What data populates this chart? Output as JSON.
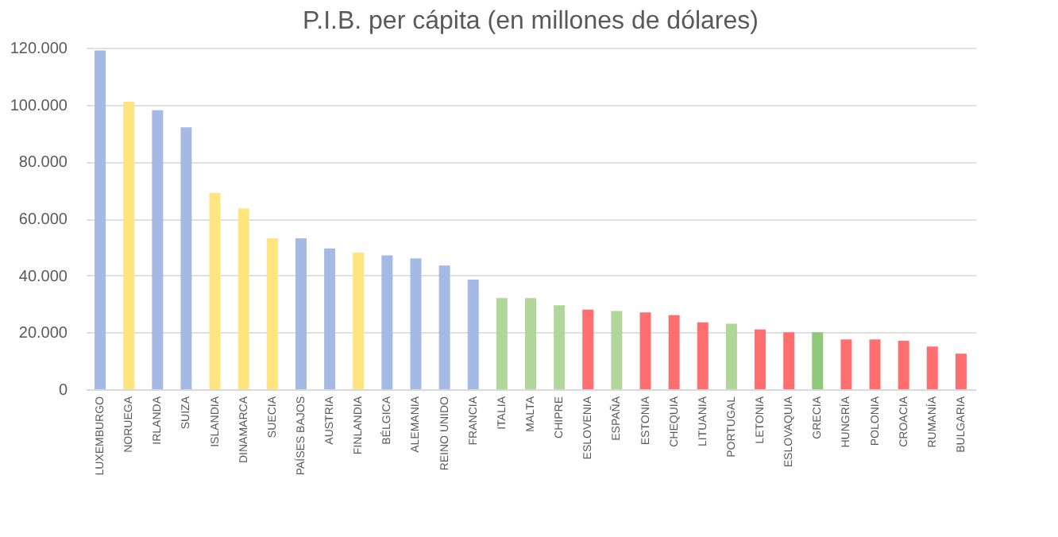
{
  "chart_data": {
    "type": "bar",
    "title": "P.I.B. per cápita (en millones de dólares)",
    "categories": [
      "LUXEMBURGO",
      "NORUEGA",
      "IRLANDA",
      "SUIZA",
      "ISLANDIA",
      "DINAMARCA",
      "SUECIA",
      "PAÍSES BAJOS",
      "AUSTRIA",
      "FINLANDIA",
      "BÉLGICA",
      "ALEMANIA",
      "REINO UNIDO",
      "FRANCIA",
      "ITALIA",
      "MALTA",
      "CHIPRE",
      "ESLOVENIA",
      "ESPAÑA",
      "ESTONIA",
      "CHEQUIA",
      "LITUANIA",
      "PORTUGAL",
      "LETONIA",
      "ESLOVAQUIA",
      "GRECIA",
      "HUNGRÍA",
      "POLONIA",
      "CROACIA",
      "RUMANÍA",
      "BULGARIA"
    ],
    "values": [
      119000,
      101000,
      98000,
      92000,
      69000,
      63500,
      53000,
      53000,
      49500,
      48000,
      47000,
      46000,
      43500,
      38500,
      32000,
      32000,
      29500,
      28000,
      27500,
      27000,
      26000,
      23500,
      23000,
      21000,
      20000,
      20000,
      17500,
      17500,
      17000,
      15000,
      12500
    ],
    "colors": [
      "#a4b9e3",
      "#ffe47f",
      "#a4b9e3",
      "#a4b9e3",
      "#ffe47f",
      "#ffe47f",
      "#ffe47f",
      "#a4b9e3",
      "#a4b9e3",
      "#ffe47f",
      "#a4b9e3",
      "#a4b9e3",
      "#a4b9e3",
      "#a4b9e3",
      "#b0d69a",
      "#b0d69a",
      "#b0d69a",
      "#ff6f70",
      "#b0d69a",
      "#ff6f70",
      "#ff6f70",
      "#ff6f70",
      "#b0d69a",
      "#ff6f70",
      "#ff6f70",
      "#8fc97a",
      "#ff6f70",
      "#ff6f70",
      "#ff6f70",
      "#ff6f70",
      "#ff6f70"
    ],
    "ylim": [
      0,
      120000
    ],
    "yticks": [
      {
        "value": 0,
        "label": "0"
      },
      {
        "value": 20000,
        "label": "20.000"
      },
      {
        "value": 40000,
        "label": "40.000"
      },
      {
        "value": 60000,
        "label": "60.000"
      },
      {
        "value": 80000,
        "label": "80.000"
      },
      {
        "value": 100000,
        "label": "100.000"
      },
      {
        "value": 120000,
        "label": "120.000"
      }
    ],
    "grid": "y"
  }
}
